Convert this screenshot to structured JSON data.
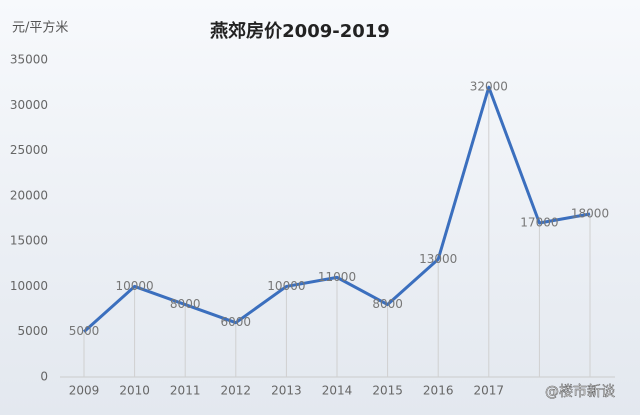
{
  "chart_data": {
    "type": "line",
    "title": "燕郊房价2009-2019",
    "y_axis_label": "元/平方米",
    "categories": [
      "2009",
      "2010",
      "2011",
      "2012",
      "2013",
      "2014",
      "2015",
      "2016",
      "2017",
      null,
      null
    ],
    "series": [
      {
        "name": "燕郊房价",
        "color": "#3b6fbe",
        "values": [
          5000,
          10000,
          8000,
          6000,
          10000,
          11000,
          8000,
          13000,
          32000,
          17000,
          18000
        ]
      }
    ],
    "ylim": [
      0,
      35000
    ],
    "yticks": [
      0,
      5000,
      10000,
      15000,
      20000,
      25000,
      30000,
      35000
    ],
    "watermark": "@楼市新谈"
  }
}
